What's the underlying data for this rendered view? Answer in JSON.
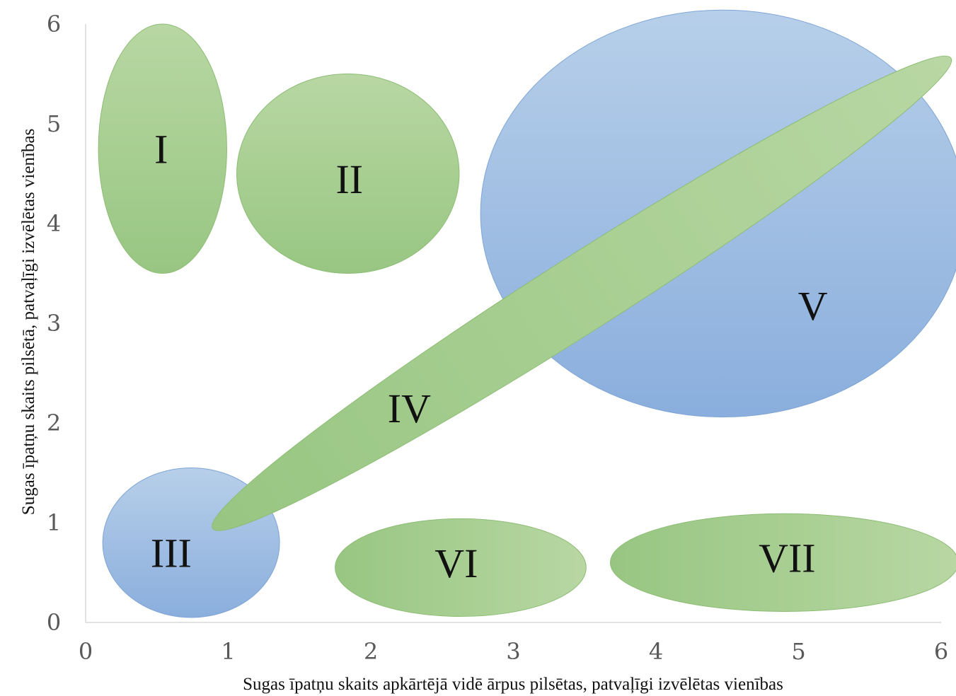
{
  "chart_data": {
    "type": "bubble-regions",
    "xlabel": "Sugas īpatņu skaits apkārtējā vidē ārpus pilsētas, patvaļīgi izvēlētas vienības",
    "ylabel": "Sugas īpatņu skaits pilsētā, patvaļīgi izvēlētas vienības",
    "xlim": [
      0,
      6
    ],
    "ylim": [
      0,
      6
    ],
    "xticks": [
      "0",
      "1",
      "2",
      "3",
      "4",
      "5",
      "6"
    ],
    "yticks": [
      "0",
      "1",
      "2",
      "3",
      "4",
      "5",
      "6"
    ],
    "grid": false,
    "regions": [
      {
        "label": "V",
        "color": "blue",
        "cx": 4.47,
        "cy": 4.1,
        "rx": 1.7,
        "ry": 2.04,
        "angle": 0
      },
      {
        "label": "I",
        "color": "green",
        "cx": 0.54,
        "cy": 4.75,
        "rx": 0.45,
        "ry": 1.25,
        "angle": 0
      },
      {
        "label": "II",
        "color": "green",
        "cx": 1.84,
        "cy": 4.5,
        "rx": 0.78,
        "ry": 1.0,
        "angle": 0
      },
      {
        "label": "III",
        "color": "blue",
        "cx": 0.74,
        "cy": 0.8,
        "rx": 0.62,
        "ry": 0.75,
        "angle": 0
      },
      {
        "label": "IV",
        "color": "green",
        "cx": 3.48,
        "cy": 3.3,
        "rx": 3.07,
        "ry": 0.38,
        "angle": -32.5
      },
      {
        "label": "VI",
        "color": "green",
        "cx": 2.63,
        "cy": 0.55,
        "rx": 0.88,
        "ry": 0.49,
        "angle": 0
      },
      {
        "label": "VII",
        "color": "green",
        "cx": 4.9,
        "cy": 0.6,
        "rx": 1.22,
        "ry": 0.49,
        "angle": 0
      }
    ],
    "labels": [
      {
        "text": "I",
        "x": 0.53,
        "y": 4.7
      },
      {
        "text": "II",
        "x": 1.85,
        "y": 4.4
      },
      {
        "text": "III",
        "x": 0.6,
        "y": 0.65
      },
      {
        "text": "IV",
        "x": 2.27,
        "y": 2.1
      },
      {
        "text": "V",
        "x": 5.1,
        "y": 3.13
      },
      {
        "text": "VI",
        "x": 2.6,
        "y": 0.55
      },
      {
        "text": "VII",
        "x": 4.92,
        "y": 0.6
      }
    ],
    "colors": {
      "green_light": "#b8d7a3",
      "green_dark": "#98c682",
      "green_stroke": "#8cbd74",
      "blue_light": "#b7cfe9",
      "blue_dark": "#8aaedd",
      "blue_stroke": "#7ea5d6",
      "axis": "#d9d9d9",
      "tick_text": "#595959",
      "label_text": "#111111"
    }
  }
}
